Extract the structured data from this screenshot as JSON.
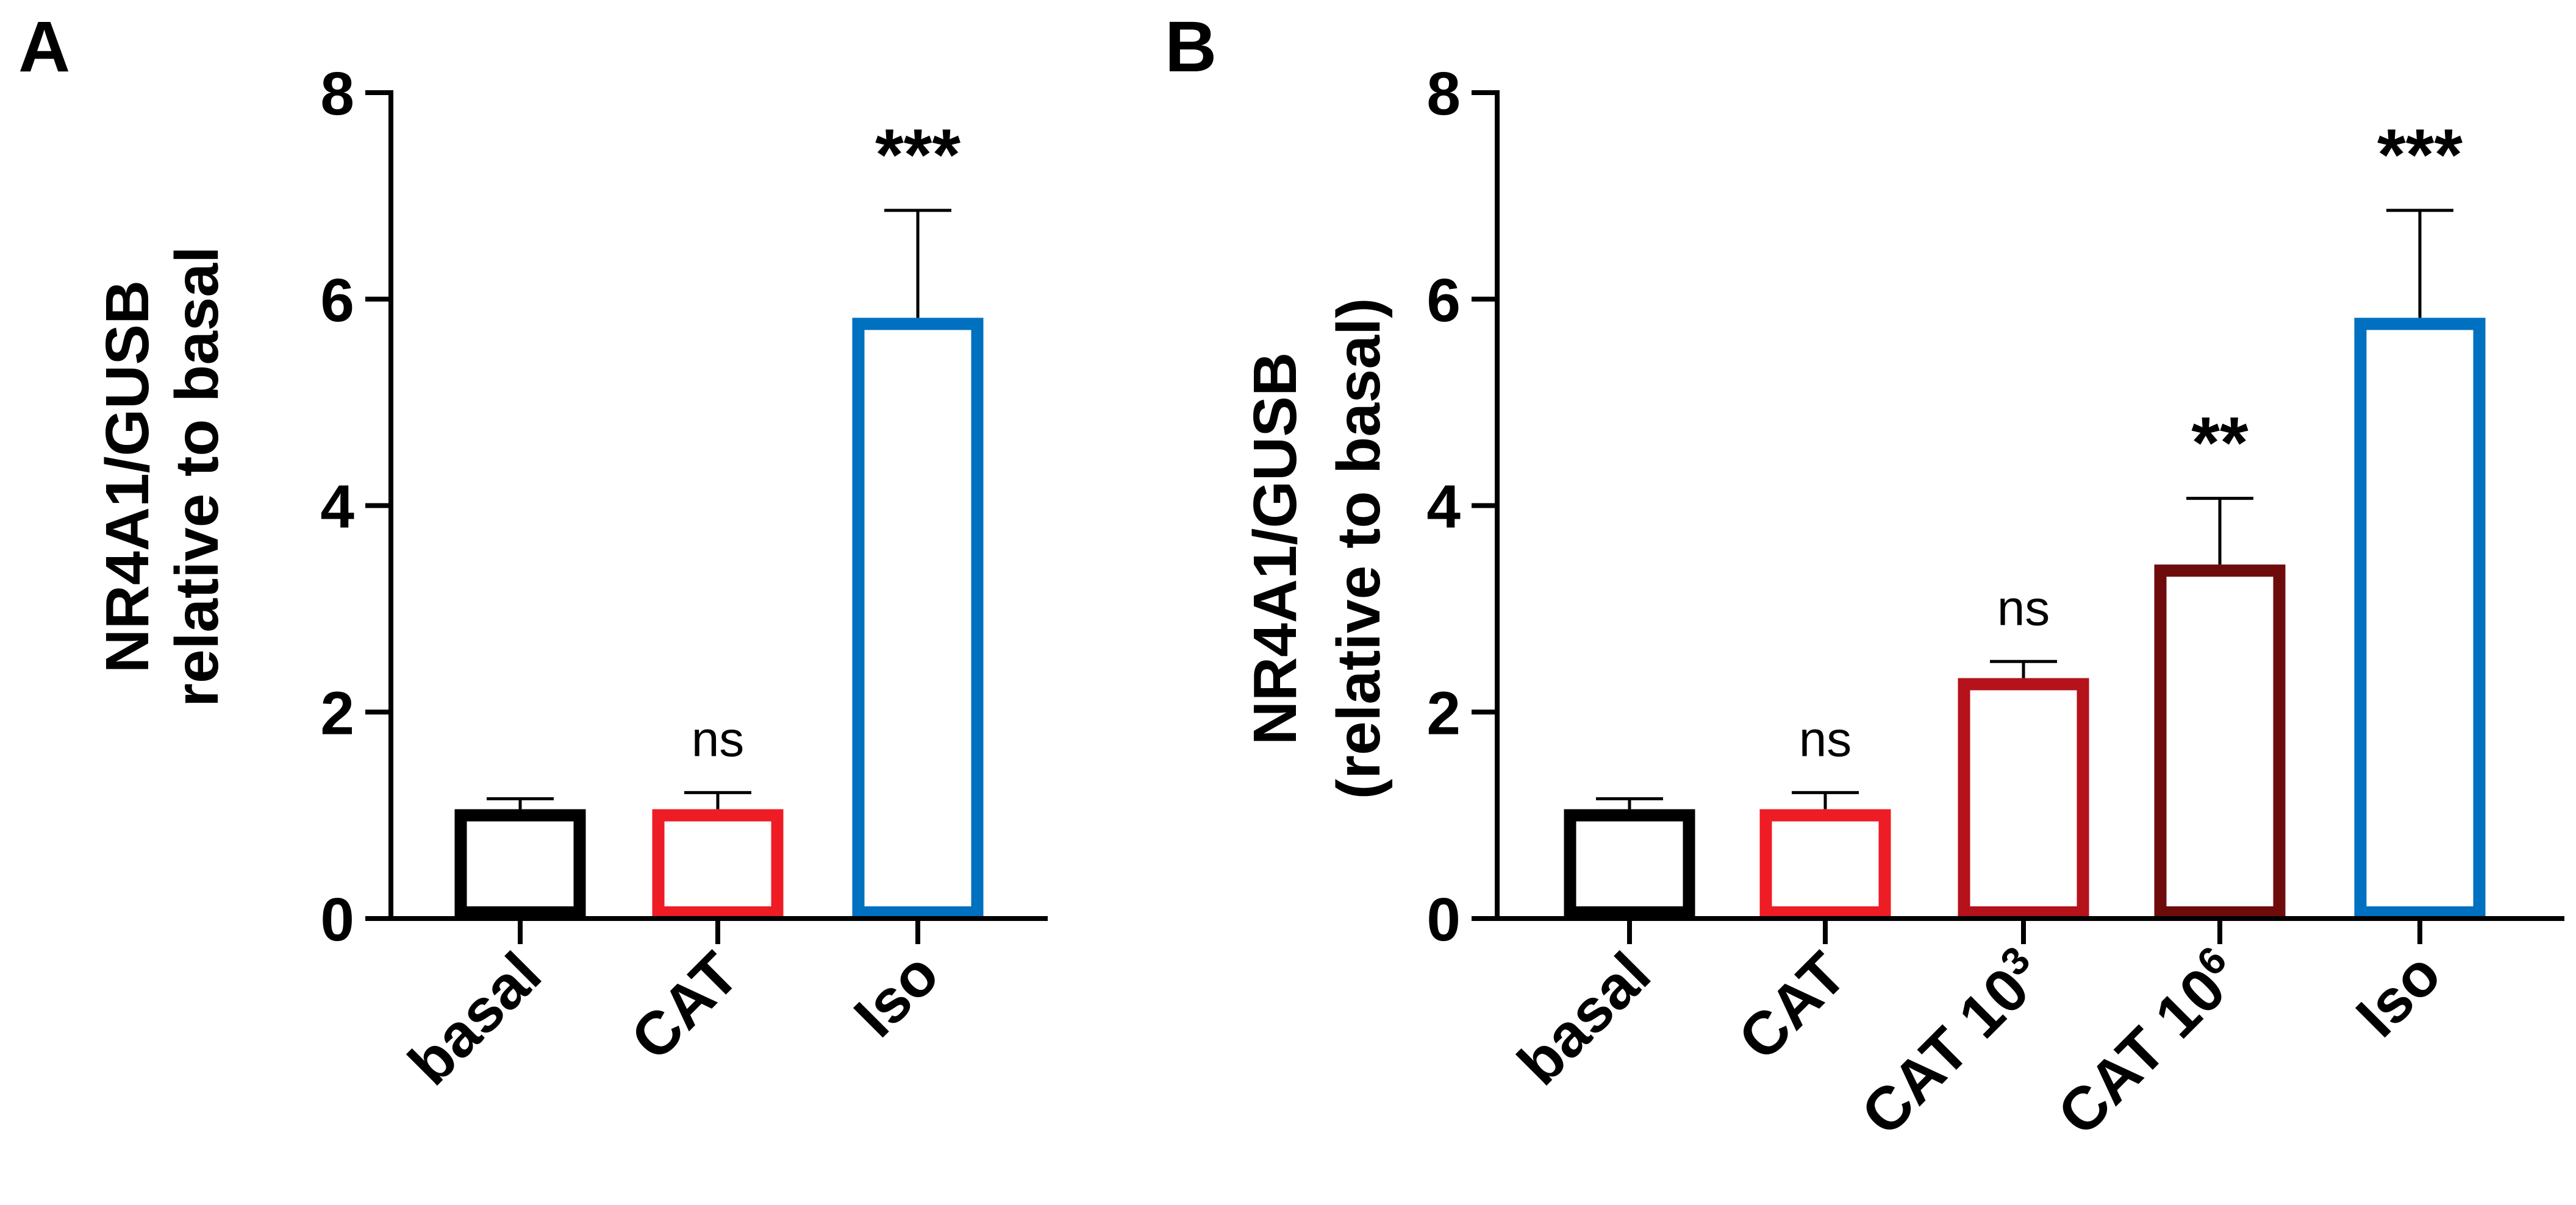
{
  "chart_data": [
    {
      "panel": "A",
      "type": "bar",
      "xlabel": "",
      "ylabel_lines": [
        "NR4A1/GUSB",
        "relative to basal"
      ],
      "ylim": [
        0,
        8
      ],
      "yticks": [
        0,
        2,
        4,
        6,
        8
      ],
      "tick_labels": [
        "0",
        "2",
        "4",
        "6",
        "8"
      ],
      "bar_style": "outline",
      "bars": [
        {
          "category": "basal",
          "label_main": "basal",
          "label_sup": "",
          "value": 1.0,
          "error": 0.16,
          "color": "#000000",
          "annotation": ""
        },
        {
          "category": "CAT",
          "label_main": "CAT",
          "label_sup": "",
          "value": 1.0,
          "error": 0.22,
          "color": "#ee1c25",
          "annotation": "ns"
        },
        {
          "category": "Iso",
          "label_main": "Iso",
          "label_sup": "",
          "value": 5.76,
          "error": 1.1,
          "color": "#0070c0",
          "annotation": "***"
        }
      ]
    },
    {
      "panel": "B",
      "type": "bar",
      "xlabel": "",
      "ylabel_lines": [
        "NR4A1/GUSB",
        "(relative to basal)"
      ],
      "ylim": [
        0,
        8
      ],
      "yticks": [
        0,
        2,
        4,
        6,
        8
      ],
      "tick_labels": [
        "0",
        "2",
        "4",
        "6",
        "8"
      ],
      "bar_style": "outline",
      "bars": [
        {
          "category": "basal",
          "label_main": "basal",
          "label_sup": "",
          "value": 1.0,
          "error": 0.16,
          "color": "#000000",
          "annotation": ""
        },
        {
          "category": "CAT",
          "label_main": "CAT",
          "label_sup": "",
          "value": 1.0,
          "error": 0.22,
          "color": "#ee1c25",
          "annotation": "ns"
        },
        {
          "category": "CAT 10^3",
          "label_main": "CAT 10",
          "label_sup": "3",
          "value": 2.27,
          "error": 0.22,
          "color": "#b5121b",
          "annotation": "ns"
        },
        {
          "category": "CAT 10^6",
          "label_main": "CAT 10",
          "label_sup": "6",
          "value": 3.37,
          "error": 0.7,
          "color": "#6e0c0c",
          "annotation": "**"
        },
        {
          "category": "Iso",
          "label_main": "Iso",
          "label_sup": "",
          "value": 5.76,
          "error": 1.1,
          "color": "#0070c0",
          "annotation": "***"
        }
      ]
    }
  ]
}
